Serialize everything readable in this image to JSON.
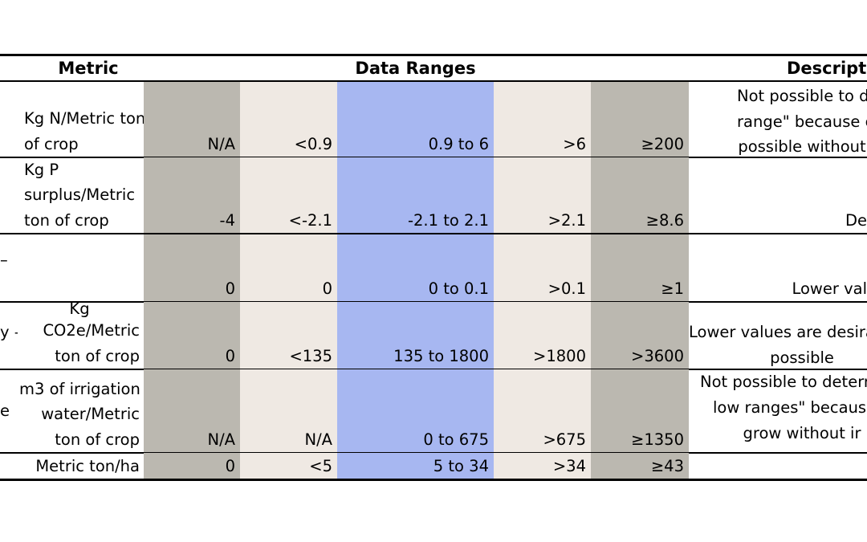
{
  "header": {
    "metric": "Metric",
    "data_ranges": "Data Ranges",
    "description": "Descripti"
  },
  "rows": [
    {
      "label_fragment": "",
      "unit_lines": [
        "",
        "Kg N/Metric ton",
        "of crop"
      ],
      "values": [
        "N/A",
        "<0.9",
        "0.9 to 6",
        ">6",
        "≥200"
      ],
      "desc_lines": [
        "Not possible to de",
        "range\" because c",
        "possible without"
      ]
    },
    {
      "label_fragment": "",
      "unit_lines": [
        "Kg P",
        "surplus/Metric",
        "ton of crop"
      ],
      "values": [
        "-4",
        "<-2.1",
        "-2.1 to 2.1",
        ">2.1",
        "≥8.6"
      ],
      "desc_lines": [
        "",
        "",
        "De"
      ]
    },
    {
      "label_fragment": "–",
      "unit_lines": [
        "",
        "",
        ""
      ],
      "values": [
        "0",
        "0",
        "0 to 0.1",
        ">0.1",
        "≥1"
      ],
      "desc_lines": [
        "",
        "",
        "Lower val"
      ]
    },
    {
      "label_fragment": "y –",
      "unit_lines": [
        "Kg",
        "CO2e/Metric",
        "ton of crop"
      ],
      "values": [
        "0",
        "<135",
        "135 to 1800",
        ">1800",
        ">3600"
      ],
      "desc_lines": [
        "",
        "Lower values are desirab",
        "possible"
      ]
    },
    {
      "label_fragment": "e",
      "unit_lines": [
        "m3 of irrigation",
        "water/Metric",
        "ton of crop"
      ],
      "values": [
        "N/A",
        "N/A",
        "0 to 675",
        ">675",
        "≥1350"
      ],
      "desc_lines": [
        "Not possible to determi",
        "low ranges\" because b",
        "grow without ir"
      ]
    },
    {
      "label_fragment": "",
      "unit_lines": [
        "Metric ton/ha"
      ],
      "values": [
        "0",
        "<5",
        "5  to 34",
        ">34",
        "≥43"
      ],
      "desc_lines": [
        ""
      ]
    }
  ],
  "colors": {
    "gray": "#bbb8b0",
    "beige": "#efe9e3",
    "blue": "#a7b7f1"
  }
}
